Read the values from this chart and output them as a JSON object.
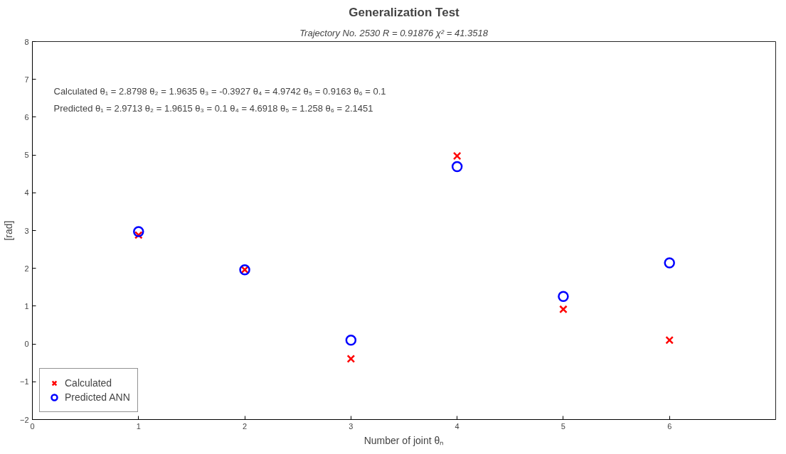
{
  "chart_data": {
    "type": "scatter",
    "title": "Generalization Test",
    "subtitle": "Trajectory No. 2530     R = 0.91876     χ² = 41.3518",
    "xlabel": "Number of joint θₙ",
    "ylabel": "[rad]",
    "x": [
      1,
      2,
      3,
      4,
      5,
      6
    ],
    "series": [
      {
        "name": "Calculated",
        "color": "#ff0000",
        "marker": "cross",
        "values": [
          2.8798,
          1.9635,
          -0.3927,
          4.9742,
          0.9163,
          0.1
        ]
      },
      {
        "name": "Predicted ANN",
        "color": "#0000ff",
        "marker": "circle",
        "values": [
          2.9713,
          1.9615,
          0.1,
          4.6918,
          1.258,
          2.1451
        ]
      }
    ],
    "annotations": [
      "Calculated   θ₁ = 2.8798   θ₂ = 1.9635   θ₃ = -0.3927   θ₄ = 4.9742   θ₅ = 0.9163   θ₆ = 0.1",
      "Predicted    θ₁ = 2.9713   θ₂ = 1.9615   θ₃ = 0.1   θ₄ = 4.6918   θ₅ = 1.258   θ₆ = 2.1451"
    ],
    "xlim": [
      0,
      7
    ],
    "xticks": [
      0,
      1,
      2,
      3,
      4,
      5,
      6
    ],
    "ylim": [
      -2,
      8
    ],
    "yticks": [
      -2,
      -1,
      0,
      1,
      2,
      3,
      4,
      5,
      6,
      7,
      8
    ],
    "grid": false,
    "legend": "bottom left"
  }
}
